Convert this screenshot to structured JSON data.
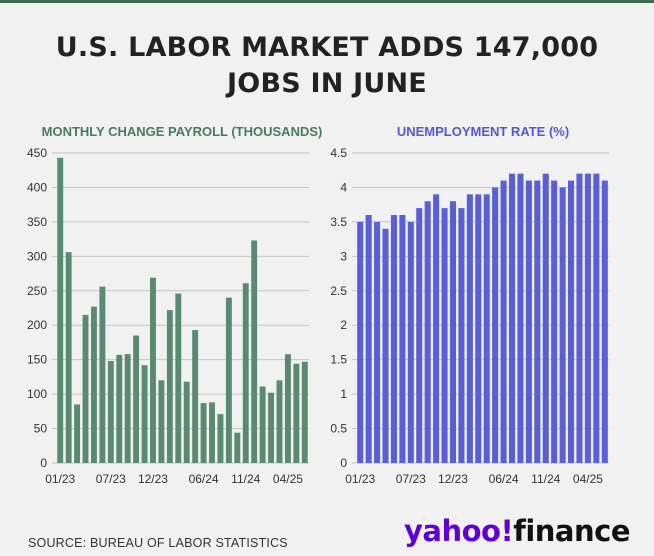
{
  "title": {
    "line1": "U.S. LABOR MARKET ADDS 147,000",
    "line2": "JOBS IN JUNE"
  },
  "colors": {
    "accent_line": "#3f6b55",
    "payroll": "#5a8a72",
    "payroll_title": "#4a7a62",
    "unemployment": "#5a5fd6",
    "unemployment_title": "#5558d0",
    "grid": "#c4c4c4",
    "axis_text": "#333333"
  },
  "chart_data": [
    {
      "type": "bar",
      "title": "MONTHLY CHANGE PAYROLL (THOUSANDS)",
      "xlabel": "",
      "ylabel": "",
      "ylim": [
        0,
        450
      ],
      "yticks": [
        "0",
        "50",
        "100",
        "150",
        "200",
        "250",
        "300",
        "350",
        "400",
        "450"
      ],
      "xtick_labels": [
        {
          "index": 0,
          "label": "01/23"
        },
        {
          "index": 6,
          "label": "07/23"
        },
        {
          "index": 11,
          "label": "12/23"
        },
        {
          "index": 17,
          "label": "06/24"
        },
        {
          "index": 22,
          "label": "11/24"
        },
        {
          "index": 27,
          "label": "04/25"
        }
      ],
      "categories": [
        "01/23",
        "02/23",
        "03/23",
        "04/23",
        "05/23",
        "06/23",
        "07/23",
        "08/23",
        "09/23",
        "10/23",
        "11/23",
        "12/23",
        "01/24",
        "02/24",
        "03/24",
        "04/24",
        "05/24",
        "06/24",
        "07/24",
        "08/24",
        "09/24",
        "10/24",
        "11/24",
        "12/24",
        "01/25",
        "02/25",
        "03/25",
        "04/25",
        "05/25",
        "06/25"
      ],
      "values": [
        443,
        306,
        85,
        215,
        227,
        256,
        148,
        157,
        158,
        185,
        142,
        269,
        120,
        222,
        246,
        118,
        193,
        87,
        88,
        71,
        240,
        44,
        261,
        323,
        111,
        102,
        120,
        158,
        144,
        147
      ]
    },
    {
      "type": "bar",
      "title": "UNEMPLOYMENT RATE (%)",
      "xlabel": "",
      "ylabel": "",
      "ylim": [
        0,
        4.5
      ],
      "yticks": [
        "0",
        "0.5",
        "1",
        "1.5",
        "2",
        "2.5",
        "3",
        "3.5",
        "4",
        "4.5"
      ],
      "xtick_labels": [
        {
          "index": 0,
          "label": "01/23"
        },
        {
          "index": 6,
          "label": "07/23"
        },
        {
          "index": 11,
          "label": "12/23"
        },
        {
          "index": 17,
          "label": "06/24"
        },
        {
          "index": 22,
          "label": "11/24"
        },
        {
          "index": 27,
          "label": "04/25"
        }
      ],
      "categories": [
        "01/23",
        "02/23",
        "03/23",
        "04/23",
        "05/23",
        "06/23",
        "07/23",
        "08/23",
        "09/23",
        "10/23",
        "11/23",
        "12/23",
        "01/24",
        "02/24",
        "03/24",
        "04/24",
        "05/24",
        "06/24",
        "07/24",
        "08/24",
        "09/24",
        "10/24",
        "11/24",
        "12/24",
        "01/25",
        "02/25",
        "03/25",
        "04/25",
        "05/25",
        "06/25"
      ],
      "values": [
        3.5,
        3.6,
        3.5,
        3.4,
        3.6,
        3.6,
        3.5,
        3.7,
        3.8,
        3.9,
        3.7,
        3.8,
        3.7,
        3.9,
        3.9,
        3.9,
        4.0,
        4.1,
        4.2,
        4.2,
        4.1,
        4.1,
        4.2,
        4.1,
        4.0,
        4.1,
        4.2,
        4.2,
        4.2,
        4.1
      ]
    }
  ],
  "source": "SOURCE: BUREAU OF LABOR STATISTICS",
  "logo": {
    "part1": "yahoo",
    "slash": "!",
    "part2": "finance"
  }
}
